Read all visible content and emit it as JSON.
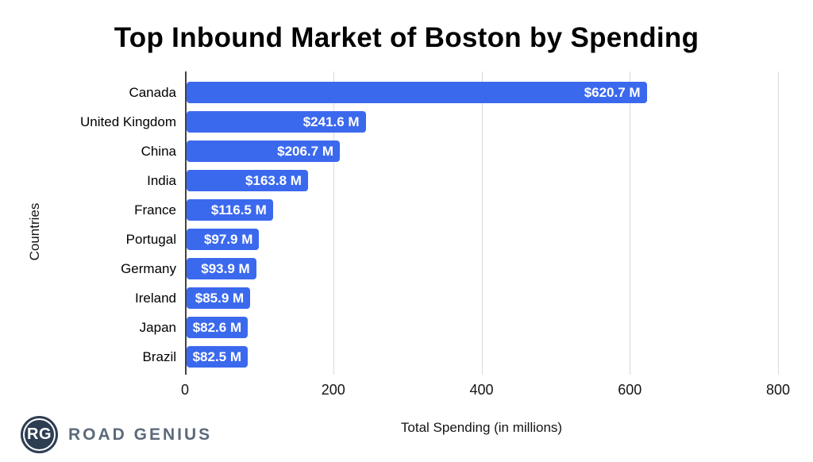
{
  "title": "Top Inbound Market of Boston by Spending",
  "chart_data": {
    "type": "bar",
    "orientation": "horizontal",
    "title": "Top Inbound Market of Boston by Spending",
    "xlabel": "Total Spending (in millions)",
    "ylabel": "Countries",
    "xlim": [
      0,
      800
    ],
    "xticks": [
      0,
      200,
      400,
      600,
      800
    ],
    "grid": true,
    "legend": false,
    "categories": [
      "Canada",
      "United Kingdom",
      "China",
      "India",
      "France",
      "Portugal",
      "Germany",
      "Ireland",
      "Japan",
      "Brazil"
    ],
    "values": [
      620.7,
      241.6,
      206.7,
      163.8,
      116.5,
      97.9,
      93.9,
      85.9,
      82.6,
      82.5
    ],
    "value_labels": [
      "$620.7 M",
      "$241.6 M",
      "$206.7 M",
      "$163.8 M",
      "$116.5 M",
      "$97.9 M",
      "$93.9 M",
      "$85.9 M",
      "$82.6 M",
      "$82.5 M"
    ],
    "bar_color": "#3b69ee",
    "value_label_color": "#ffffff",
    "gridline_color": "#d9d9d9",
    "axis_line_color": "#424242"
  },
  "logo": {
    "monogram": "RG",
    "brand": "ROAD GENIUS",
    "circle_color": "#2e3e52",
    "ring_color": "#ffffff",
    "monogram_color": "#ffffff",
    "text_color": "#5c6a7a"
  }
}
